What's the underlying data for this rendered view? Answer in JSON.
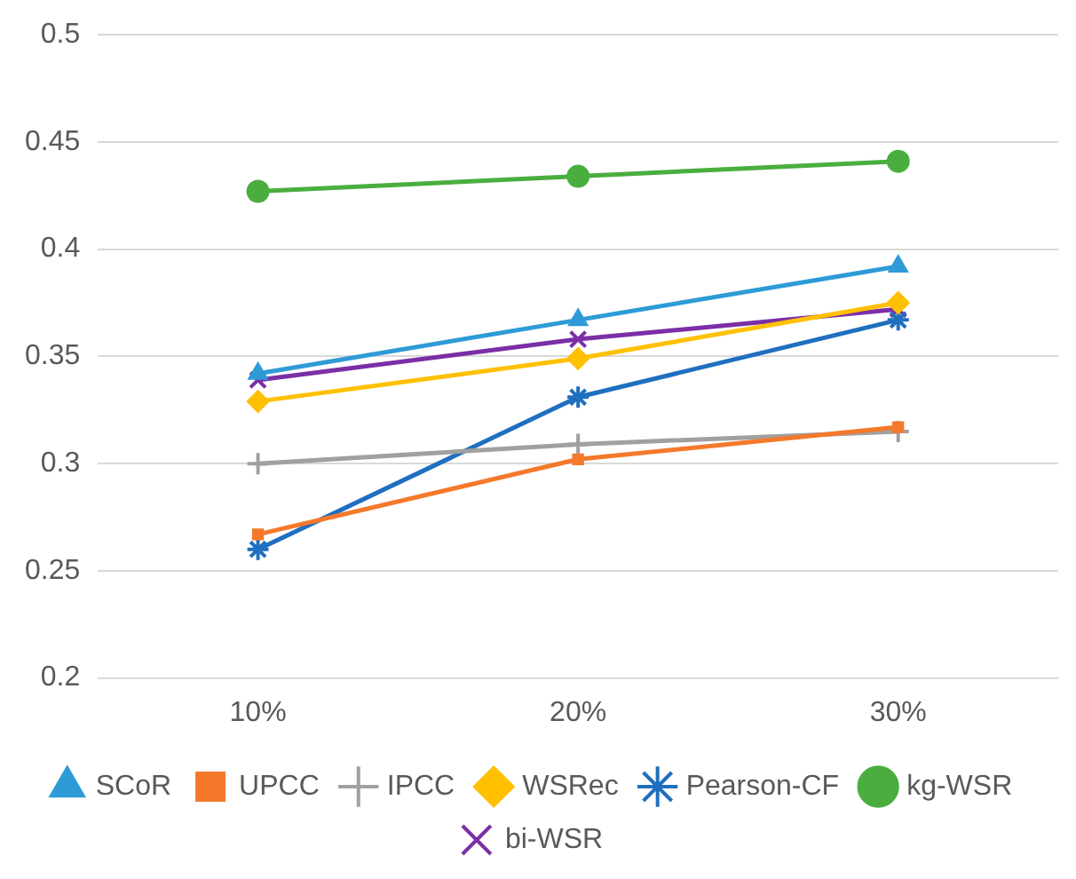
{
  "chart_data": {
    "type": "line",
    "categories": [
      "10%",
      "20%",
      "30%"
    ],
    "series": [
      {
        "name": "SCoR",
        "color": "#2e9bd6",
        "marker": "triangle",
        "values": [
          0.342,
          0.367,
          0.392
        ]
      },
      {
        "name": "UPCC",
        "color": "#f4792b",
        "marker": "square",
        "values": [
          0.267,
          0.302,
          0.317
        ]
      },
      {
        "name": "IPCC",
        "color": "#a0a0a0",
        "marker": "cross",
        "values": [
          0.3,
          0.309,
          0.315
        ]
      },
      {
        "name": "WSRec",
        "color": "#ffc000",
        "marker": "diamond",
        "values": [
          0.329,
          0.349,
          0.375
        ]
      },
      {
        "name": "Pearson-CF",
        "color": "#1f6fc0",
        "marker": "cross",
        "values": [
          0.26,
          0.331,
          0.367
        ]
      },
      {
        "name": "kg-WSR",
        "color": "#4aae3f",
        "marker": "circle",
        "values": [
          0.427,
          0.434,
          0.441
        ]
      },
      {
        "name": "bi-WSR",
        "color": "#7b2fa6",
        "marker": "x",
        "values": [
          0.339,
          0.358,
          0.372
        ]
      }
    ],
    "ylim": [
      0.2,
      0.5
    ],
    "yticks": [
      0.2,
      0.25,
      0.3,
      0.35,
      0.4,
      0.45,
      0.5
    ],
    "grid": "y",
    "legend": "bottom"
  }
}
